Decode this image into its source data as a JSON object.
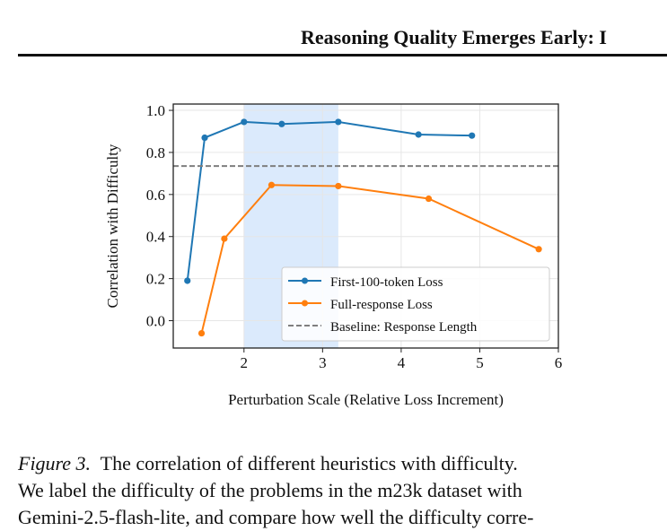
{
  "header": {
    "title": "Reasoning Quality Emerges Early: I"
  },
  "chart_data": {
    "type": "line",
    "xlabel": "Perturbation Scale (Relative Loss Increment)",
    "ylabel": "Correlation with Difficulty",
    "xlim": [
      1.1,
      6.0
    ],
    "ylim": [
      -0.13,
      1.03
    ],
    "x_ticks": [
      2,
      3,
      4,
      5,
      6
    ],
    "y_ticks": [
      0.0,
      0.2,
      0.4,
      0.6,
      0.8,
      1.0
    ],
    "x_tick_labels": [
      "2",
      "3",
      "4",
      "5",
      "6"
    ],
    "y_tick_labels": [
      "0.0",
      "0.2",
      "0.4",
      "0.6",
      "0.8",
      "1.0"
    ],
    "grid": true,
    "legend_position": "lower-right",
    "highlight_region": {
      "x": [
        2.0,
        3.2
      ],
      "color": "#dbeafc"
    },
    "series": [
      {
        "name": "First-100-token Loss",
        "color": "#1f77b4",
        "marker": "circle",
        "x": [
          1.28,
          1.5,
          2.0,
          2.48,
          3.2,
          4.22,
          4.9
        ],
        "y": [
          0.19,
          0.87,
          0.945,
          0.935,
          0.945,
          0.885,
          0.88
        ]
      },
      {
        "name": "Full-response Loss",
        "color": "#ff7f0e",
        "marker": "circle",
        "x": [
          1.46,
          1.75,
          2.35,
          3.2,
          4.35,
          5.75
        ],
        "y": [
          -0.06,
          0.39,
          0.645,
          0.64,
          0.58,
          0.34
        ]
      },
      {
        "name": "Baseline: Response Length",
        "color": "#7f7f7f",
        "style": "dashed",
        "y": 0.735
      }
    ]
  },
  "caption": {
    "label": "Figure 3.",
    "line1": "The correlation of different heuristics with difficulty.",
    "line2": "We label the difficulty of the problems in the m23k dataset with",
    "line3": "Gemini-2.5-flash-lite, and compare how well the difficulty corre-"
  }
}
